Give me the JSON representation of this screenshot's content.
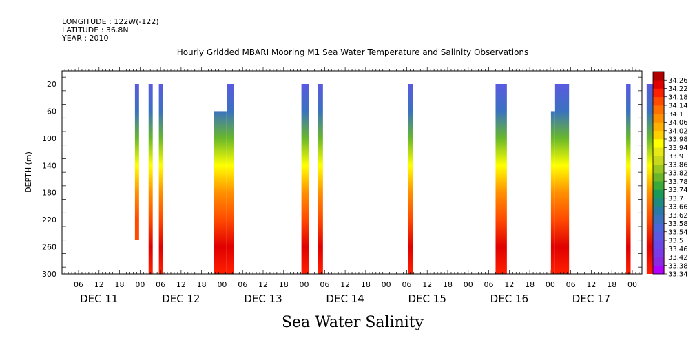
{
  "header": {
    "longitude": "LONGITUDE : 122W(-122)",
    "latitude": "LATITUDE : 36.8N",
    "year": "YEAR : 2010",
    "title": "Hourly Gridded MBARI Mooring M1 Sea Water Temperature and Salinity Observations"
  },
  "footer": {
    "caption": "Sea Water Salinity"
  },
  "chart_data": {
    "type": "heatmap",
    "title": "Hourly Gridded MBARI Mooring M1 Sea Water Temperature and Salinity Observations",
    "xlabel": "",
    "ylabel": "DEPTH (m)",
    "x_unit": "hours since Dec 11 00:00 (2010)",
    "xlim": [
      0,
      168
    ],
    "ylim": [
      300,
      5
    ],
    "y_inverted": true,
    "x_hour_ticks": [
      "06",
      "12",
      "18",
      "00",
      "06",
      "12",
      "18",
      "00",
      "06",
      "12",
      "18",
      "00",
      "06",
      "12",
      "18",
      "00",
      "06",
      "12",
      "18",
      "00",
      "06",
      "12",
      "18",
      "00",
      "06",
      "12",
      "18",
      "00"
    ],
    "x_hour_tick_values": [
      -18,
      -12,
      -6,
      0,
      6,
      12,
      18,
      24,
      30,
      36,
      42,
      48,
      54,
      60,
      66,
      72,
      78,
      84,
      90,
      96,
      102,
      108,
      114,
      120,
      126,
      132,
      138,
      144
    ],
    "x_day_labels": [
      "DEC 11",
      "DEC 12",
      "DEC 13",
      "DEC 14",
      "DEC 15",
      "DEC 16",
      "DEC 17"
    ],
    "x_day_label_values": [
      -12,
      12,
      36,
      60,
      84,
      108,
      132
    ],
    "y_ticks": [
      20,
      60,
      100,
      140,
      180,
      220,
      260,
      300
    ],
    "colorbar": {
      "levels": [
        33.34,
        33.38,
        33.42,
        33.46,
        33.5,
        33.54,
        33.58,
        33.62,
        33.66,
        33.7,
        33.74,
        33.78,
        33.82,
        33.86,
        33.9,
        33.94,
        33.98,
        34.02,
        34.06,
        34.1,
        34.14,
        34.18,
        34.22,
        34.26
      ],
      "colors": [
        "#b000ff",
        "#8a2be2",
        "#7a3ae8",
        "#6a48e8",
        "#5a5ae0",
        "#4a66d8",
        "#3a72c0",
        "#2a7aa8",
        "#1e8a80",
        "#1a9a5a",
        "#3aaa3a",
        "#6ab82a",
        "#9ac822",
        "#c8d81a",
        "#e8e814",
        "#ffff00",
        "#ffd000",
        "#ffb000",
        "#ff9000",
        "#ff7000",
        "#ff4a00",
        "#ff2000",
        "#e00000",
        "#b00000"
      ]
    },
    "gradient_stops": [
      {
        "depth": 20,
        "value": 33.5
      },
      {
        "depth": 60,
        "value": 33.6
      },
      {
        "depth": 100,
        "value": 33.78
      },
      {
        "depth": 140,
        "value": 33.94
      },
      {
        "depth": 180,
        "value": 34.06
      },
      {
        "depth": 220,
        "value": 34.14
      },
      {
        "depth": 260,
        "value": 34.24
      },
      {
        "depth": 300,
        "value": 34.2
      }
    ],
    "profiles": [
      {
        "x0": -1.5,
        "x1": -0.3,
        "top": 20,
        "bottom": 250
      },
      {
        "x0": 2.5,
        "x1": 3.7,
        "top": 20,
        "bottom": 300
      },
      {
        "x0": 5.5,
        "x1": 6.7,
        "top": 20,
        "bottom": 300
      },
      {
        "x0": 21.5,
        "x1": 25.3,
        "top": 60,
        "bottom": 300
      },
      {
        "x0": 25.5,
        "x1": 27.5,
        "top": 20,
        "bottom": 300
      },
      {
        "x0": 47.2,
        "x1": 49.4,
        "top": 20,
        "bottom": 300
      },
      {
        "x0": 52,
        "x1": 53.5,
        "top": 20,
        "bottom": 300
      },
      {
        "x0": 78.5,
        "x1": 79.8,
        "top": 20,
        "bottom": 300
      },
      {
        "x0": 104,
        "x1": 107.3,
        "top": 20,
        "bottom": 300
      },
      {
        "x0": 120.2,
        "x1": 121.4,
        "top": 60,
        "bottom": 300
      },
      {
        "x0": 121.4,
        "x1": 125.5,
        "top": 20,
        "bottom": 300,
        "top_value": 33.38
      },
      {
        "x0": 142.2,
        "x1": 143.5,
        "top": 20,
        "bottom": 300
      },
      {
        "x0": 148.2,
        "x1": 153.4,
        "top": 20,
        "bottom": 300,
        "top_value": 33.44
      }
    ]
  }
}
